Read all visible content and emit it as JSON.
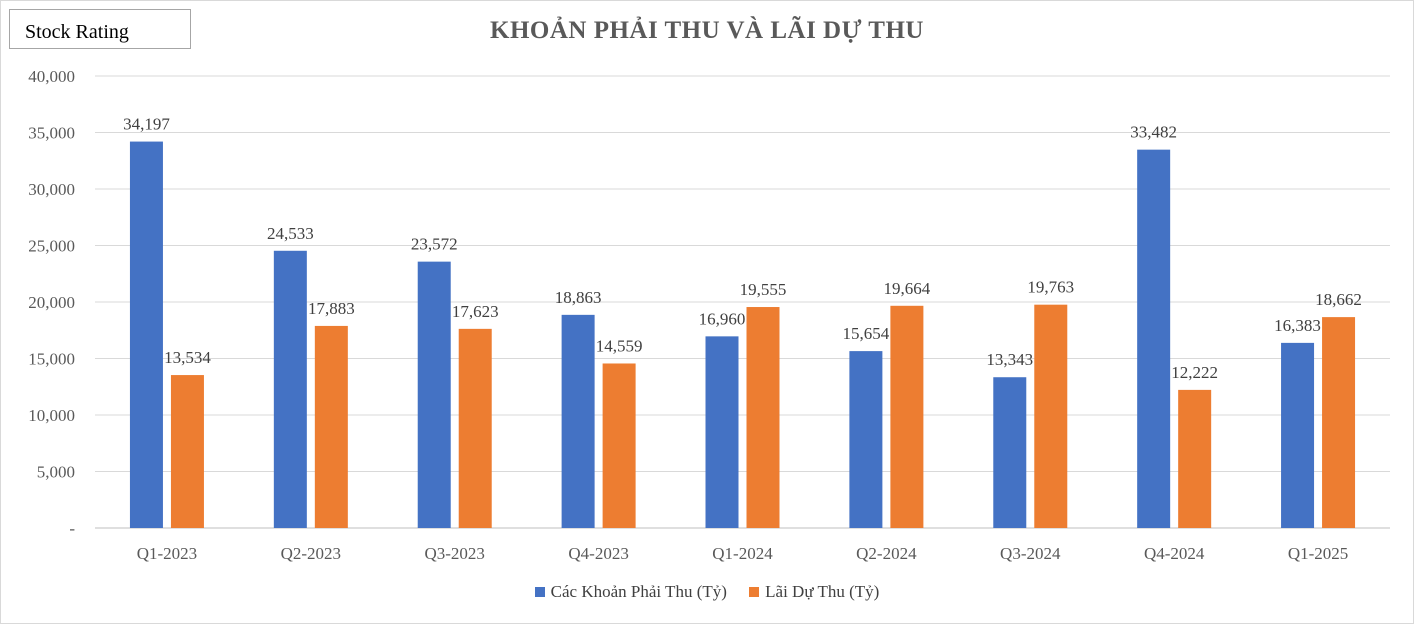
{
  "badge": "Stock Rating",
  "chart_data": {
    "type": "bar",
    "title": "KHOẢN PHẢI THU VÀ LÃI DỰ THU",
    "categories": [
      "Q1-2023",
      "Q2-2023",
      "Q3-2023",
      "Q4-2023",
      "Q1-2024",
      "Q2-2024",
      "Q3-2024",
      "Q4-2024",
      "Q1-2025"
    ],
    "series": [
      {
        "name": "Các Khoản Phải Thu (Tỷ)",
        "color": "#4472c4",
        "values": [
          34197,
          24533,
          23572,
          18863,
          16960,
          15654,
          13343,
          33482,
          16383
        ]
      },
      {
        "name": "Lãi Dự Thu (Tỷ)",
        "color": "#ed7d31",
        "values": [
          13534,
          17883,
          17623,
          14559,
          19555,
          19664,
          19763,
          12222,
          18662
        ]
      }
    ],
    "ylim": [
      0,
      40000
    ],
    "yticks": [
      0,
      5000,
      10000,
      15000,
      20000,
      25000,
      30000,
      35000,
      40000
    ],
    "ytick_labels": [
      "-",
      "5,000",
      "10,000",
      "15,000",
      "20,000",
      "25,000",
      "30,000",
      "35,000",
      "40,000"
    ],
    "grid": true,
    "legend": "bottom"
  }
}
